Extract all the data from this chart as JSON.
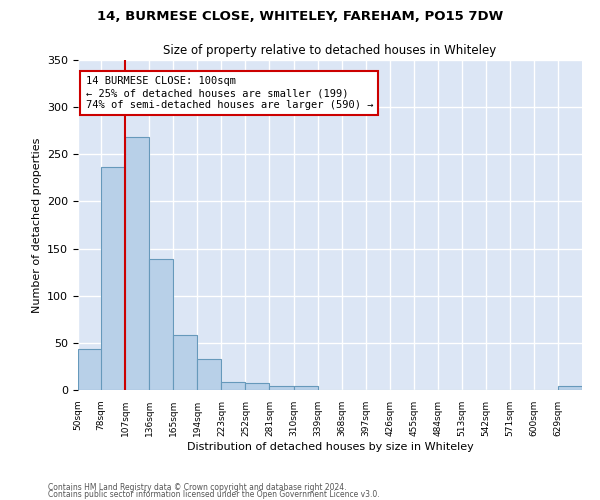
{
  "title1": "14, BURMESE CLOSE, WHITELEY, FAREHAM, PO15 7DW",
  "title2": "Size of property relative to detached houses in Whiteley",
  "xlabel": "Distribution of detached houses by size in Whiteley",
  "ylabel": "Number of detached properties",
  "footer1": "Contains HM Land Registry data © Crown copyright and database right 2024.",
  "footer2": "Contains public sector information licensed under the Open Government Licence v3.0.",
  "annotation_line1": "14 BURMESE CLOSE: 100sqm",
  "annotation_line2": "← 25% of detached houses are smaller (199)",
  "annotation_line3": "74% of semi-detached houses are larger (590) →",
  "bar_color": "#b8d0e8",
  "bar_edge_color": "#6699bb",
  "ref_line_color": "#cc0000",
  "annotation_box_color": "#cc0000",
  "ylim": [
    0,
    350
  ],
  "yticks": [
    0,
    50,
    100,
    150,
    200,
    250,
    300,
    350
  ],
  "categories": [
    "50sqm",
    "78sqm",
    "107sqm",
    "136sqm",
    "165sqm",
    "194sqm",
    "223sqm",
    "252sqm",
    "281sqm",
    "310sqm",
    "339sqm",
    "368sqm",
    "397sqm",
    "426sqm",
    "455sqm",
    "484sqm",
    "513sqm",
    "542sqm",
    "571sqm",
    "600sqm",
    "629sqm"
  ],
  "bin_edges": [
    50,
    78,
    107,
    136,
    165,
    194,
    223,
    252,
    281,
    310,
    339,
    368,
    397,
    426,
    455,
    484,
    513,
    542,
    571,
    600,
    629
  ],
  "values": [
    44,
    237,
    268,
    139,
    58,
    33,
    9,
    7,
    4,
    4,
    0,
    0,
    0,
    0,
    0,
    0,
    0,
    0,
    0,
    0,
    4
  ],
  "bin_width": 29,
  "ref_line_x": 107,
  "background_color": "#dce6f5",
  "grid_color": "#ffffff",
  "fig_width": 6.0,
  "fig_height": 5.0,
  "dpi": 100
}
